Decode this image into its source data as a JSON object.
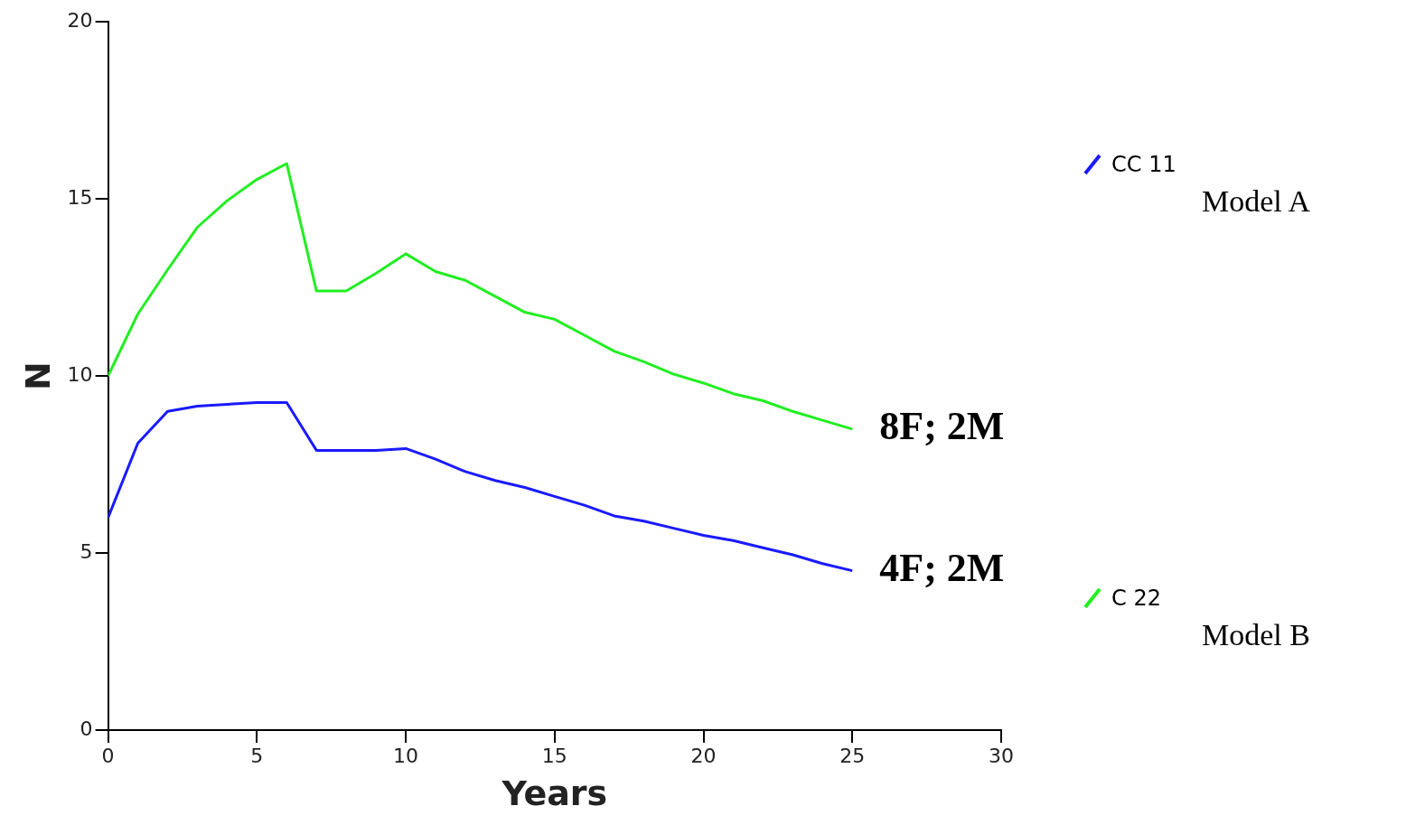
{
  "chart_data": {
    "type": "line",
    "xlabel": "Years",
    "ylabel": "N",
    "x": [
      0,
      1,
      2,
      3,
      4,
      5,
      6,
      7,
      8,
      9,
      10,
      11,
      12,
      13,
      14,
      15,
      16,
      17,
      18,
      19,
      20,
      21,
      22,
      23,
      24,
      25
    ],
    "series": [
      {
        "name": "CC 11",
        "color": "#1a1aff",
        "values": [
          6,
          8.1,
          9,
          9.15,
          9.2,
          9.25,
          9.25,
          7.9,
          7.9,
          7.9,
          7.95,
          7.65,
          7.3,
          7.05,
          6.85,
          6.6,
          6.35,
          6.05,
          5.9,
          5.7,
          5.5,
          5.35,
          5.15,
          4.95,
          4.7,
          4.5
        ]
      },
      {
        "name": "C 22",
        "color": "#22ee22",
        "values": [
          10,
          11.75,
          13,
          14.2,
          14.95,
          15.55,
          16,
          12.4,
          12.4,
          12.9,
          13.45,
          12.95,
          12.7,
          12.25,
          11.8,
          11.6,
          11.15,
          10.7,
          10.4,
          10.05,
          9.8,
          9.5,
          9.3,
          9,
          8.75,
          8.5
        ]
      }
    ],
    "xlim": [
      0,
      30
    ],
    "xticks": [
      0,
      5,
      10,
      15,
      20,
      25,
      30
    ],
    "ylim": [
      0,
      20
    ],
    "yticks": [
      0,
      5,
      10,
      15,
      20
    ],
    "grid": false,
    "legend": "right",
    "marker": "none",
    "line_style": "solid",
    "annotations": [
      "Model A",
      "Model B",
      "4F; 2M",
      "8F; 2M"
    ]
  }
}
